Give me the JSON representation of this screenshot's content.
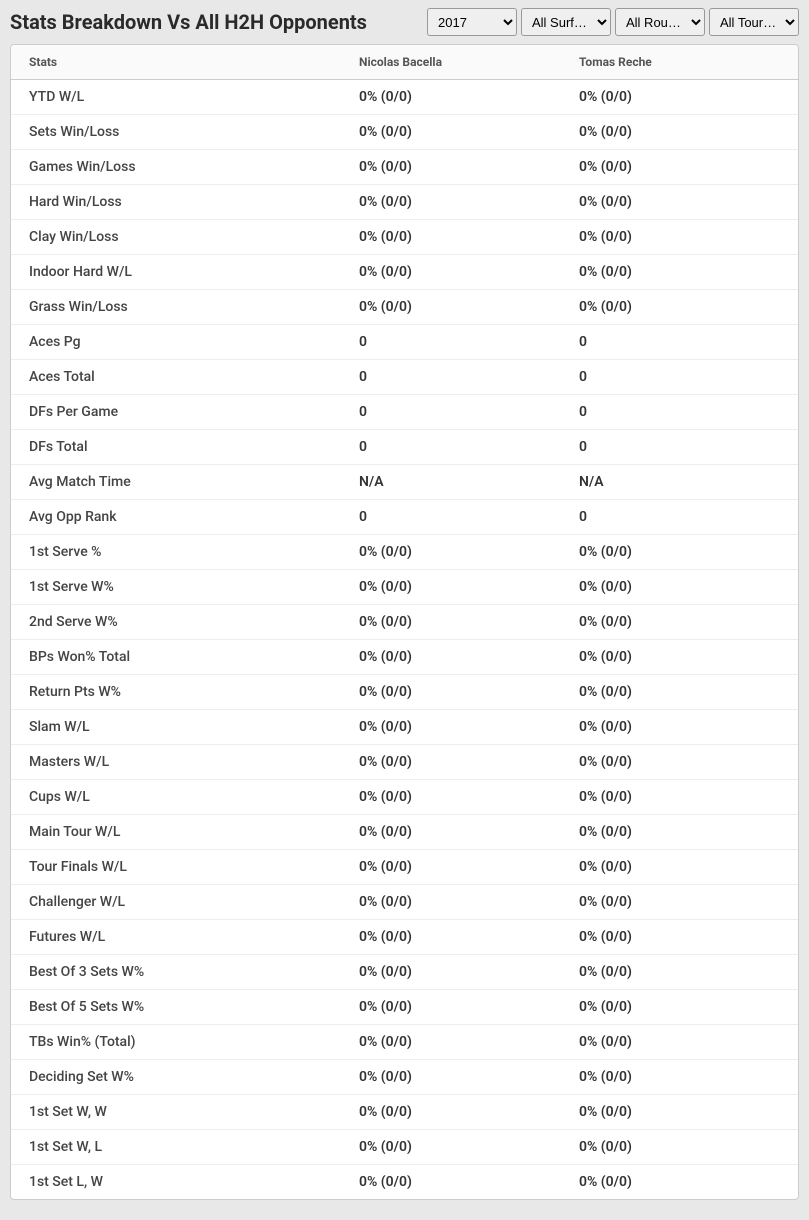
{
  "header": {
    "title": "Stats Breakdown Vs All H2H Opponents"
  },
  "filters": {
    "year": {
      "selected": "2017",
      "options": [
        "2017"
      ]
    },
    "surface": {
      "selected": "All Surf…",
      "options": [
        "All Surf…"
      ]
    },
    "round": {
      "selected": "All Rou…",
      "options": [
        "All Rou…"
      ]
    },
    "tour": {
      "selected": "All Tour…",
      "options": [
        "All Tour…"
      ]
    }
  },
  "table": {
    "columns": [
      "Stats",
      "Nicolas Bacella",
      "Tomas Reche"
    ],
    "rows": [
      [
        "YTD W/L",
        "0% (0/0)",
        "0% (0/0)"
      ],
      [
        "Sets Win/Loss",
        "0% (0/0)",
        "0% (0/0)"
      ],
      [
        "Games Win/Loss",
        "0% (0/0)",
        "0% (0/0)"
      ],
      [
        "Hard Win/Loss",
        "0% (0/0)",
        "0% (0/0)"
      ],
      [
        "Clay Win/Loss",
        "0% (0/0)",
        "0% (0/0)"
      ],
      [
        "Indoor Hard W/L",
        "0% (0/0)",
        "0% (0/0)"
      ],
      [
        "Grass Win/Loss",
        "0% (0/0)",
        "0% (0/0)"
      ],
      [
        "Aces Pg",
        "0",
        "0"
      ],
      [
        "Aces Total",
        "0",
        "0"
      ],
      [
        "DFs Per Game",
        "0",
        "0"
      ],
      [
        "DFs Total",
        "0",
        "0"
      ],
      [
        "Avg Match Time",
        "N/A",
        "N/A"
      ],
      [
        "Avg Opp Rank",
        "0",
        "0"
      ],
      [
        "1st Serve %",
        "0% (0/0)",
        "0% (0/0)"
      ],
      [
        "1st Serve W%",
        "0% (0/0)",
        "0% (0/0)"
      ],
      [
        "2nd Serve W%",
        "0% (0/0)",
        "0% (0/0)"
      ],
      [
        "BPs Won% Total",
        "0% (0/0)",
        "0% (0/0)"
      ],
      [
        "Return Pts W%",
        "0% (0/0)",
        "0% (0/0)"
      ],
      [
        "Slam W/L",
        "0% (0/0)",
        "0% (0/0)"
      ],
      [
        "Masters W/L",
        "0% (0/0)",
        "0% (0/0)"
      ],
      [
        "Cups W/L",
        "0% (0/0)",
        "0% (0/0)"
      ],
      [
        "Main Tour W/L",
        "0% (0/0)",
        "0% (0/0)"
      ],
      [
        "Tour Finals W/L",
        "0% (0/0)",
        "0% (0/0)"
      ],
      [
        "Challenger W/L",
        "0% (0/0)",
        "0% (0/0)"
      ],
      [
        "Futures W/L",
        "0% (0/0)",
        "0% (0/0)"
      ],
      [
        "Best Of 3 Sets W%",
        "0% (0/0)",
        "0% (0/0)"
      ],
      [
        "Best Of 5 Sets W%",
        "0% (0/0)",
        "0% (0/0)"
      ],
      [
        "TBs Win% (Total)",
        "0% (0/0)",
        "0% (0/0)"
      ],
      [
        "Deciding Set W%",
        "0% (0/0)",
        "0% (0/0)"
      ],
      [
        "1st Set W, W",
        "0% (0/0)",
        "0% (0/0)"
      ],
      [
        "1st Set W, L",
        "0% (0/0)",
        "0% (0/0)"
      ],
      [
        "1st Set L, W",
        "0% (0/0)",
        "0% (0/0)"
      ]
    ]
  },
  "styling": {
    "background_color": "#e8e8e8",
    "table_background": "#ffffff",
    "header_background": "#fafafa",
    "border_color": "#ccc",
    "row_border_color": "#eee",
    "title_color": "#2a2a2a",
    "header_text_color": "#555",
    "cell_text_color": "#333",
    "stat_label_color": "#444",
    "title_fontsize": 20,
    "header_fontsize": 12,
    "cell_fontsize": 14
  }
}
